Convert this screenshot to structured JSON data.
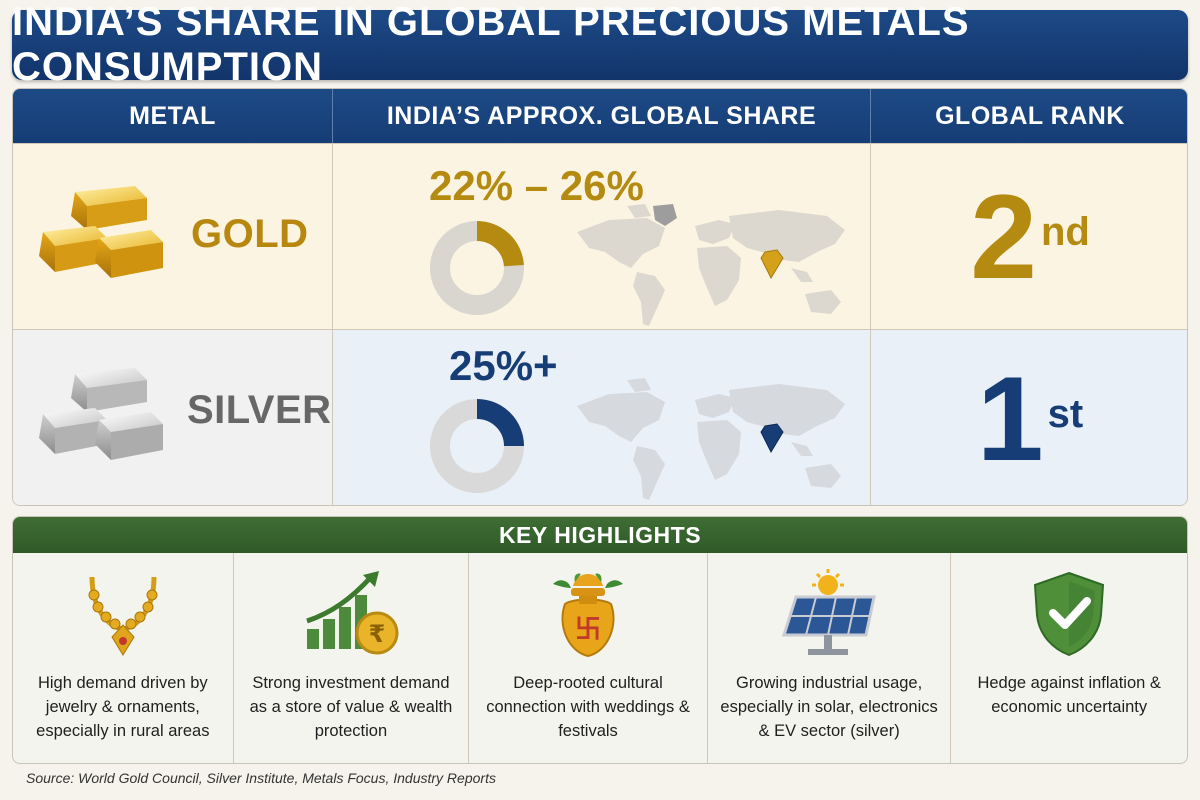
{
  "title": "INDIA’S SHARE IN GLOBAL PRECIOUS METALS CONSUMPTION",
  "table": {
    "headers": [
      "METAL",
      "INDIA’S APPROX. GLOBAL SHARE",
      "GLOBAL RANK"
    ],
    "rows": [
      {
        "metal": "GOLD",
        "metal_icon": "gold-bars-icon",
        "share": "22% – 26%",
        "share_fraction": 0.24,
        "rank_number": "2",
        "rank_suffix": "nd",
        "color": "#b58a10"
      },
      {
        "metal": "SILVER",
        "metal_icon": "silver-bars-icon",
        "share": "25%+",
        "share_fraction": 0.25,
        "rank_number": "1",
        "rank_suffix": "st",
        "color": "#163d75"
      }
    ]
  },
  "highlights": {
    "heading": "KEY HIGHLIGHTS",
    "items": [
      {
        "icon": "necklace-icon",
        "text": "High demand driven by jewelry & ornaments, especially in rural areas"
      },
      {
        "icon": "growth-chart-rupee-icon",
        "text": "Strong investment demand as a store of value & wealth protection"
      },
      {
        "icon": "kalash-pot-icon",
        "text": "Deep-rooted cultural connection with weddings & festivals"
      },
      {
        "icon": "solar-panel-icon",
        "text": "Growing industrial usage, especially in solar, electronics & EV sector (silver)"
      },
      {
        "icon": "shield-check-icon",
        "text": "Hedge against inflation & economic uncertainty"
      }
    ]
  },
  "source": "Source: World Gold Council, Silver Institute, Metals Focus, Industry Reports",
  "colors": {
    "title_bg": "#1d4a86",
    "highlights_bg": "#3f6d34",
    "gold": "#b58a10",
    "silver_text": "#676767",
    "navy": "#163d75"
  }
}
